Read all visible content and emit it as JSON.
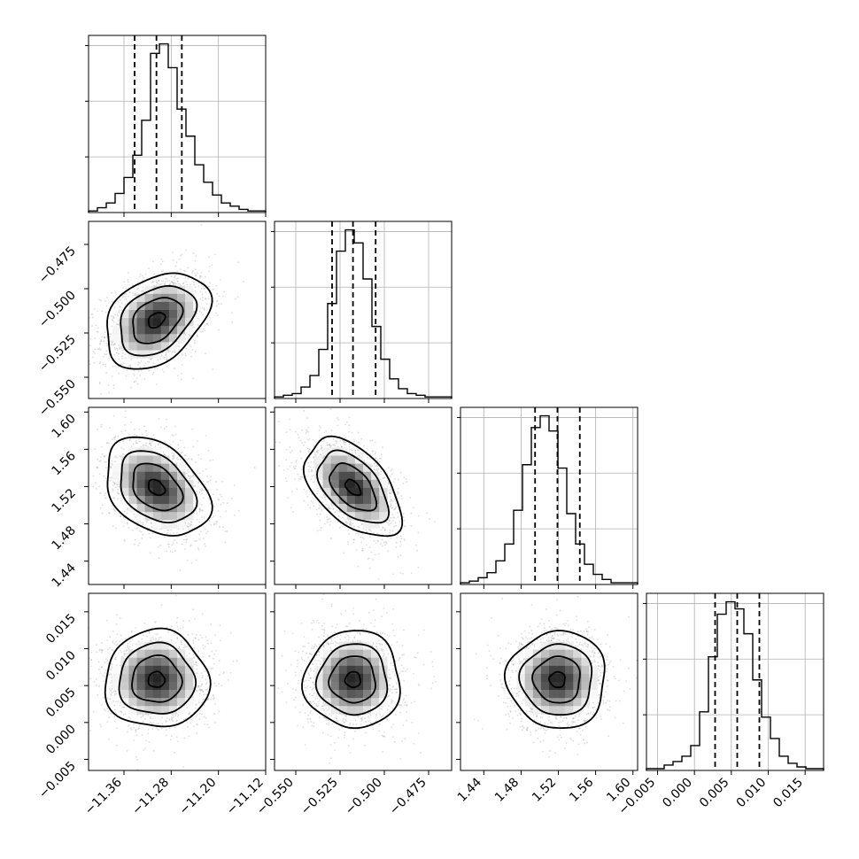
{
  "chart_data": {
    "type": "corner",
    "parameters": [
      {
        "range": [
          -11.42,
          -11.12
        ],
        "ticks": [
          -11.36,
          -11.28,
          -11.2,
          -11.12
        ],
        "tick_labels": [
          "−11.36",
          "−11.28",
          "−11.20",
          "−11.12"
        ],
        "quantiles": [
          -11.342,
          -11.305,
          -11.262
        ],
        "hist_counts": [
          1,
          3,
          6,
          12,
          22,
          36,
          58,
          100,
          106,
          91,
          65,
          48,
          30,
          19,
          11,
          6,
          4,
          2,
          1,
          1
        ]
      },
      {
        "range": [
          -0.562,
          -0.462
        ],
        "ticks": [
          -0.55,
          -0.525,
          -0.5,
          -0.475
        ],
        "tick_labels": [
          "−0.550",
          "−0.525",
          "−0.500",
          "−0.475"
        ],
        "quantiles": [
          -0.5295,
          -0.5177,
          -0.5049
        ],
        "hist_counts": [
          1,
          2,
          3,
          7,
          14,
          30,
          58,
          90,
          103,
          95,
          73,
          44,
          24,
          12,
          6,
          3,
          2,
          1,
          1,
          1
        ]
      },
      {
        "range": [
          1.415,
          1.605
        ],
        "ticks": [
          1.44,
          1.48,
          1.52,
          1.56,
          1.6
        ],
        "tick_labels": [
          "1.44",
          "1.48",
          "1.52",
          "1.56",
          "1.60"
        ],
        "quantiles": [
          1.495,
          1.519,
          1.543
        ],
        "hist_counts": [
          1,
          2,
          4,
          7,
          14,
          24,
          44,
          71,
          93,
          100,
          91,
          69,
          42,
          24,
          12,
          6,
          3,
          1,
          1,
          1
        ]
      },
      {
        "range": [
          -0.0065,
          0.0175
        ],
        "ticks": [
          -0.005,
          0.0,
          0.005,
          0.01,
          0.015
        ],
        "tick_labels": [
          "−0.005",
          "0.000",
          "0.005",
          "0.010",
          "0.015"
        ],
        "quantiles": [
          0.0028,
          0.0058,
          0.0088
        ],
        "hist_counts": [
          1,
          1,
          3,
          5,
          8,
          14,
          33,
          64,
          88,
          95,
          91,
          77,
          51,
          30,
          18,
          8,
          4,
          2,
          1,
          1
        ]
      }
    ],
    "correlations": [
      {
        "i": 1,
        "j": 0,
        "rho": 0.35
      },
      {
        "i": 2,
        "j": 0,
        "rho": -0.35
      },
      {
        "i": 2,
        "j": 1,
        "rho": -0.5
      },
      {
        "i": 3,
        "j": 0,
        "rho": 0.0
      },
      {
        "i": 3,
        "j": 1,
        "rho": 0.0
      },
      {
        "i": 3,
        "j": 2,
        "rho": 0.0
      }
    ],
    "grid": true,
    "colors": {
      "hist": "#000000",
      "points": "#9a9a9a",
      "contour": "#000000",
      "grid": "#b0b0b0"
    }
  }
}
